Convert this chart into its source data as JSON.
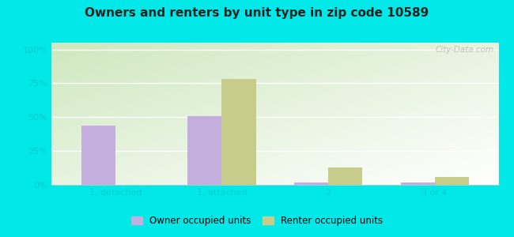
{
  "title": "Owners and renters by unit type in zip code 10589",
  "categories": [
    "1, detached",
    "1, attached",
    "2",
    "3 or 4"
  ],
  "owner_values": [
    44,
    51,
    2,
    2
  ],
  "renter_values": [
    0,
    78,
    13,
    6
  ],
  "owner_color": "#c4aedd",
  "renter_color": "#c8cc8a",
  "yticks": [
    0,
    25,
    50,
    75,
    100
  ],
  "ytick_labels": [
    "0%",
    "25%",
    "50%",
    "75%",
    "100%"
  ],
  "ylim": [
    0,
    105
  ],
  "bar_width": 0.32,
  "outer_color": "#00e8e8",
  "legend_owner": "Owner occupied units",
  "legend_renter": "Renter occupied units",
  "watermark": "City-Data.com",
  "tick_color": "#00cccc",
  "title_fontsize": 11,
  "tick_fontsize": 8
}
